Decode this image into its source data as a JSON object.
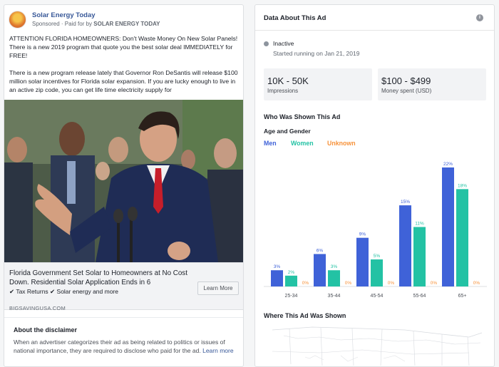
{
  "ad": {
    "page_name": "Solar Energy Today",
    "sponsored_prefix": "Sponsored · Paid for by ",
    "sponsored_by": "SOLAR ENERGY TODAY",
    "paragraph1": "ATTENTION FLORIDA HOMEOWNERS: Don't Waste Money On New Solar Panels! There is a new 2019 program that quote you the best solar deal IMMEDIATELY for FREE!",
    "paragraph2": "There is a new program release lately that Governor Ron DeSantis will release $100 million solar incentives for Florida solar expansion. If you are lucky enough to live in an active zip code, you can get life time electricity supply for",
    "link_title": "Florida Government Set Solar to Homeowners at No Cost Down. Residential Solar Application Ends in 6",
    "link_tags": "✔ Tax Returns ✔ Solar energy and more",
    "cta": "Learn More",
    "domain": "BIGSAVINGUSA.COM"
  },
  "disclaimer": {
    "title": "About the disclaimer",
    "text": "When an advertiser categorizes their ad as being related to politics or issues of national importance, they are required to disclose who paid for the ad.",
    "link": "Learn more"
  },
  "data_panel": {
    "title": "Data About This Ad",
    "info_icon": "i",
    "status": "Inactive",
    "started": "Started running on Jan 21, 2019",
    "impressions_value": "10K - 50K",
    "impressions_label": "Impressions",
    "spent_value": "$100 - $499",
    "spent_label": "Money spent (USD)",
    "who_title": "Who Was Shown This Ad",
    "age_gender_label": "Age and Gender",
    "where_title": "Where This Ad Was Shown"
  },
  "colors": {
    "men": "#3f62d8",
    "women": "#23c2a4",
    "unknown": "#f7923a"
  },
  "chart_data": {
    "type": "bar",
    "categories": [
      "25-34",
      "35-44",
      "45-54",
      "55-64",
      "65+"
    ],
    "series": [
      {
        "name": "Men",
        "values": [
          3,
          6,
          9,
          15,
          22
        ]
      },
      {
        "name": "Women",
        "values": [
          2,
          3,
          5,
          11,
          18
        ]
      },
      {
        "name": "Unknown",
        "values": [
          0,
          0,
          0,
          0,
          0
        ]
      }
    ],
    "unit": "%",
    "ylim": [
      0,
      22
    ],
    "legend_position": "top-left"
  }
}
